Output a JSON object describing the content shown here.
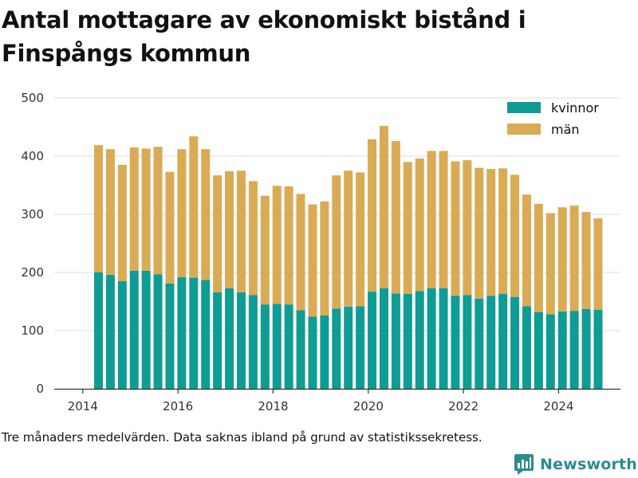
{
  "title": "Antal mottagare av ekonomiskt bistånd i Finspångs kommun",
  "footnote": "Tre månaders medelvärden. Data saknas ibland på grund av statistikssekretess.",
  "brand": {
    "name": "Newsworthy",
    "icon": "newsworthy-logo-icon",
    "color": "#2c8c8c"
  },
  "colors": {
    "kvinnor": "#0e9c94",
    "man": "#d9ab55",
    "grid": "#dddddd",
    "axis": "#333333"
  },
  "chart_data": {
    "type": "bar",
    "stacked": true,
    "title": "Antal mottagare av ekonomiskt bistånd i Finspångs kommun",
    "xlabel": "",
    "ylabel": "",
    "xlim": [
      2013.4,
      2025.3
    ],
    "ylim": [
      0,
      500
    ],
    "yticks": [
      "0",
      "100",
      "200",
      "300",
      "400",
      "500"
    ],
    "xticks": [
      {
        "value": 2014,
        "label": "2014"
      },
      {
        "value": 2016,
        "label": "2016"
      },
      {
        "value": 2018,
        "label": "2018"
      },
      {
        "value": 2020,
        "label": "2020"
      },
      {
        "value": 2022,
        "label": "2022"
      },
      {
        "value": 2024,
        "label": "2024"
      }
    ],
    "grid": true,
    "legend_position": "top-right",
    "x": [
      2014.33,
      2014.58,
      2014.83,
      2015.08,
      2015.33,
      2015.58,
      2015.83,
      2016.08,
      2016.33,
      2016.58,
      2016.83,
      2017.08,
      2017.33,
      2017.58,
      2017.83,
      2018.08,
      2018.33,
      2018.58,
      2018.83,
      2019.08,
      2019.33,
      2019.58,
      2019.83,
      2020.08,
      2020.33,
      2020.58,
      2020.83,
      2021.08,
      2021.33,
      2021.58,
      2021.83,
      2022.08,
      2022.33,
      2022.58,
      2022.83,
      2023.08,
      2023.33,
      2023.58,
      2023.83,
      2024.08,
      2024.33,
      2024.58,
      2024.83
    ],
    "series": [
      {
        "name": "kvinnor",
        "values": [
          200,
          196,
          185,
          203,
          203,
          197,
          181,
          192,
          191,
          187,
          166,
          173,
          166,
          161,
          145,
          146,
          145,
          135,
          124,
          126,
          138,
          141,
          142,
          167,
          173,
          164,
          163,
          168,
          173,
          173,
          160,
          161,
          155,
          160,
          163,
          158,
          142,
          132,
          128,
          133,
          134,
          137,
          136
        ]
      },
      {
        "name": "män",
        "values": [
          219,
          216,
          200,
          212,
          210,
          219,
          192,
          220,
          243,
          225,
          201,
          201,
          209,
          196,
          187,
          203,
          203,
          200,
          193,
          196,
          229,
          234,
          230,
          262,
          279,
          262,
          227,
          228,
          236,
          236,
          231,
          232,
          225,
          218,
          216,
          210,
          192,
          186,
          174,
          179,
          181,
          167,
          157
        ]
      }
    ]
  }
}
